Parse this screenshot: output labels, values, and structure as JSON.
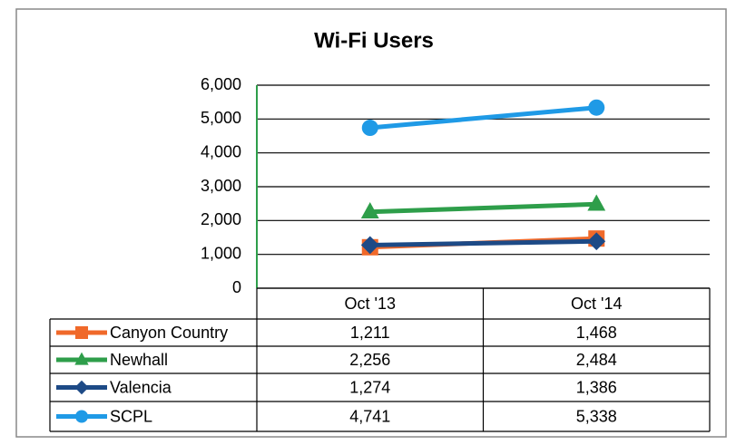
{
  "chart_data": {
    "type": "line",
    "title": "Wi-Fi Users",
    "categories": [
      "Oct '13",
      "Oct '14"
    ],
    "series": [
      {
        "name": "Canyon Country",
        "color": "#f0692a",
        "marker": "square",
        "values": [
          1211,
          1468
        ],
        "value_labels": [
          "1,211",
          "1,468"
        ]
      },
      {
        "name": "Newhall",
        "color": "#2e9e4a",
        "marker": "triangle",
        "values": [
          2256,
          2484
        ],
        "value_labels": [
          "2,256",
          "2,484"
        ]
      },
      {
        "name": "Valencia",
        "color": "#1d4a86",
        "marker": "diamond",
        "values": [
          1274,
          1386
        ],
        "value_labels": [
          "1,274",
          "1,386"
        ]
      },
      {
        "name": "SCPL",
        "color": "#1f9ae6",
        "marker": "circle",
        "values": [
          4741,
          5338
        ],
        "value_labels": [
          "4,741",
          "5,338"
        ]
      }
    ],
    "ylim": [
      0,
      6000
    ],
    "yticks": [
      0,
      {
        "value": 1000,
        "label": "1,000"
      },
      {
        "value": 2000,
        "label": "2,000"
      },
      {
        "value": 3000,
        "label": "3,000"
      },
      {
        "value": 4000,
        "label": "4,000"
      },
      {
        "value": 5000,
        "label": "5,000"
      },
      {
        "value": 6000,
        "label": "6,000"
      }
    ],
    "grid": true,
    "legend": "table"
  }
}
